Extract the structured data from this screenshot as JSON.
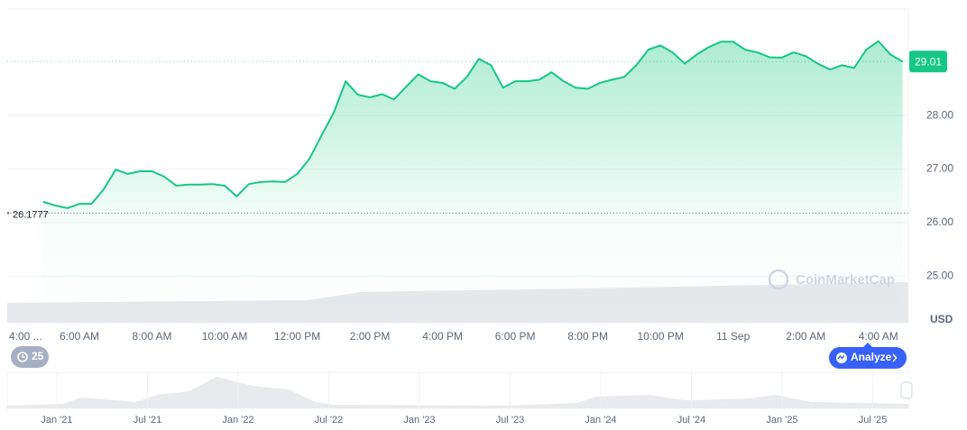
{
  "chart_data": {
    "type": "line",
    "categories": [
      "4:00 ...",
      null,
      null,
      null,
      null,
      null,
      "6:00 AM",
      null,
      null,
      null,
      null,
      null,
      "8:00 AM",
      null,
      null,
      null,
      null,
      null,
      "10:00 AM",
      null,
      null,
      null,
      null,
      null,
      "12:00 PM",
      null,
      null,
      null,
      null,
      null,
      "2:00 PM",
      null,
      null,
      null,
      null,
      null,
      "4:00 PM",
      null,
      null,
      null,
      null,
      null,
      "6:00 PM",
      null,
      null,
      null,
      null,
      null,
      "8:00 PM",
      null,
      null,
      null,
      null,
      null,
      "10:00 PM",
      null,
      null,
      null,
      null,
      null,
      "11 Sep",
      null,
      null,
      null,
      null,
      null,
      "2:00 AM",
      null,
      null,
      null,
      null,
      null,
      "4:00 AM",
      null,
      null
    ],
    "series": [
      {
        "color": "#16c784",
        "values": [
          null,
          null,
          null,
          26.39,
          26.32,
          26.27,
          26.35,
          26.35,
          26.62,
          26.99,
          26.91,
          26.96,
          26.96,
          26.86,
          26.69,
          26.71,
          26.71,
          26.72,
          26.69,
          26.49,
          26.72,
          26.76,
          26.77,
          26.76,
          26.91,
          27.19,
          27.63,
          28.05,
          28.64,
          28.39,
          28.34,
          28.4,
          28.3,
          28.54,
          28.77,
          28.64,
          28.61,
          28.5,
          28.72,
          29.06,
          28.94,
          28.52,
          28.64,
          28.64,
          28.67,
          28.81,
          28.64,
          28.52,
          28.5,
          28.61,
          28.67,
          28.72,
          28.94,
          29.23,
          29.31,
          29.18,
          28.97,
          29.14,
          29.28,
          29.38,
          29.38,
          29.23,
          29.18,
          29.09,
          29.08,
          29.18,
          29.11,
          28.97,
          28.86,
          28.94,
          28.89,
          29.23,
          29.39,
          29.14,
          29.01
        ]
      }
    ],
    "ylim": [
      24.13,
      29.99
    ],
    "yticks": [
      {
        "value": 25,
        "label": "25.00"
      },
      {
        "value": 26,
        "label": "26.00"
      },
      {
        "value": 27,
        "label": "27.00"
      },
      {
        "value": 28,
        "label": "28.00"
      }
    ],
    "reference_line": 26.1777,
    "grid": true,
    "currency": "USD",
    "watermark": "CoinMarketCap",
    "history_badge": 25,
    "analyze_button": "Analyze",
    "navigator_labels": [
      "Jan '21",
      "Jul '21",
      "Jan '22",
      "Jul '22",
      "Jan '23",
      "Jul '23",
      "Jan '24",
      "Jul '24",
      "Jan '25",
      "Jul '25"
    ]
  }
}
